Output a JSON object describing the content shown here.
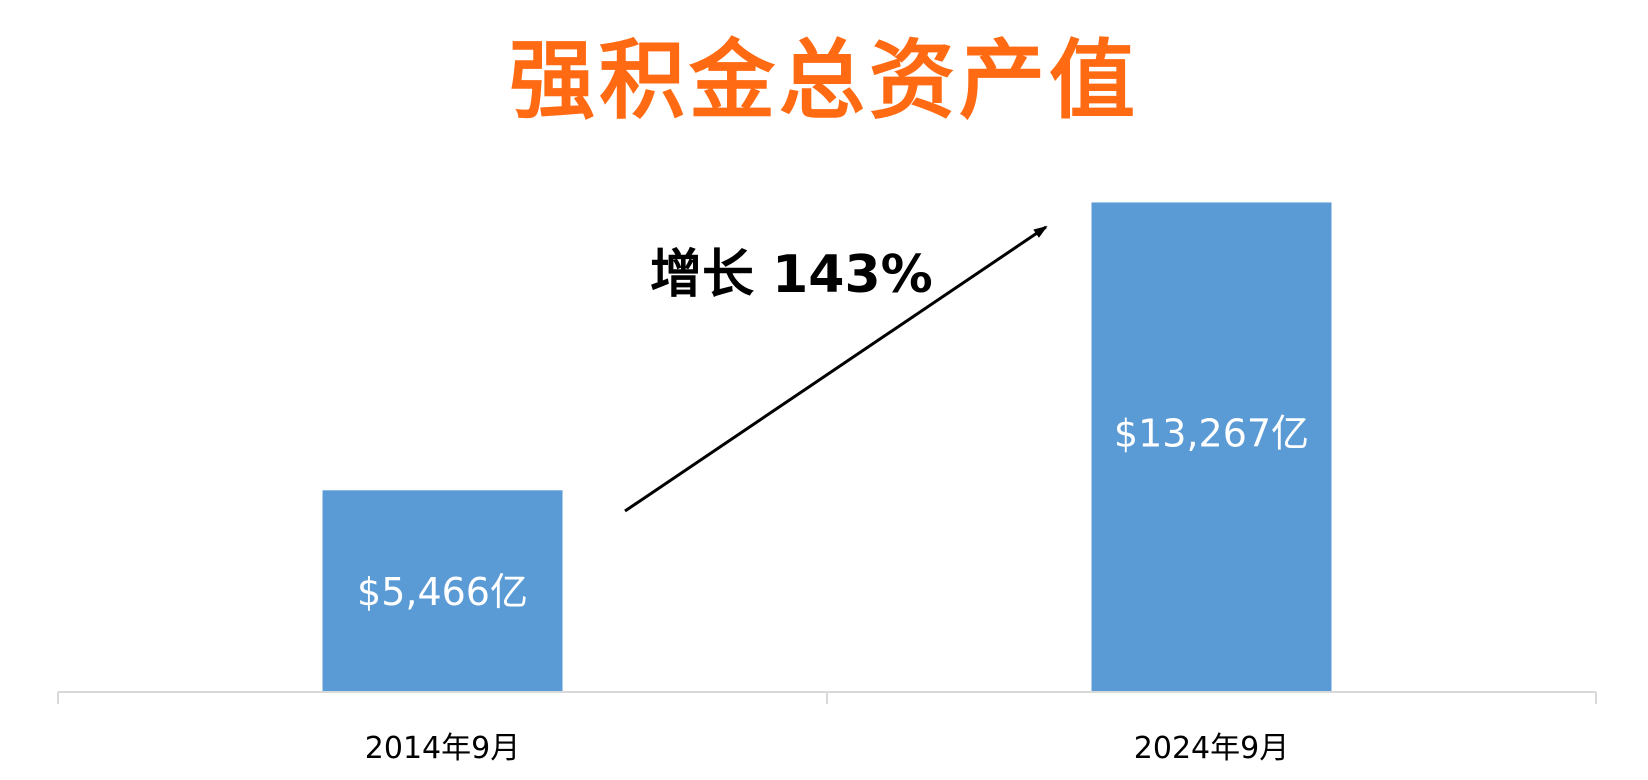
{
  "chart_data": {
    "type": "bar",
    "title": "强积金总资产值",
    "categories": [
      "2014年9月",
      "2024年9月"
    ],
    "values": [
      5466,
      13267
    ],
    "data_labels": [
      "$5,466亿",
      "$13,267亿"
    ],
    "annotation": "增长 143%",
    "xlabel": "",
    "ylabel": "",
    "ylim": [
      0,
      14000
    ],
    "grid": false,
    "legend": "none"
  },
  "colors": {
    "title": "#FF6A13",
    "bar": "#5B9BD5",
    "axis": "#D9D9D9",
    "label_on_bar": "#FFFFFF",
    "tick_label": "#000000",
    "arrow": "#000000"
  }
}
